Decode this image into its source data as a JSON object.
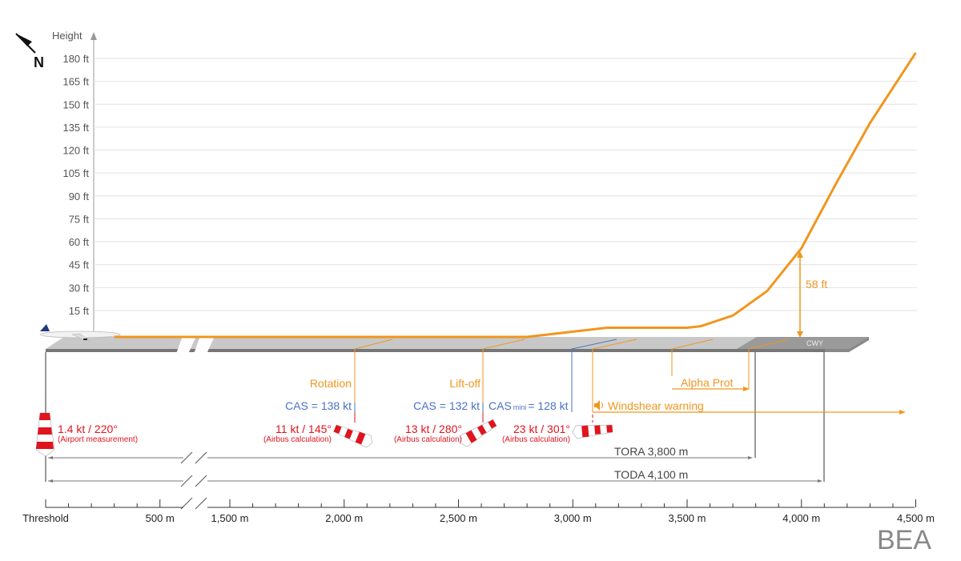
{
  "y_axis": {
    "label": "Height",
    "ticks": [
      "15 ft",
      "30 ft",
      "45 ft",
      "60 ft",
      "75 ft",
      "90 ft",
      "105 ft",
      "120 ft",
      "135 ft",
      "150 ft",
      "165 ft",
      "180 ft"
    ],
    "tick_values": [
      15,
      30,
      45,
      60,
      75,
      90,
      105,
      120,
      135,
      150,
      165,
      180
    ]
  },
  "x_axis": {
    "ticks": [
      {
        "label": "Threshold",
        "value": 0
      },
      {
        "label": "500 m",
        "value": 500
      },
      {
        "label": "1,500 m",
        "value": 1500
      },
      {
        "label": "2,000 m",
        "value": 2000
      },
      {
        "label": "2,500 m",
        "value": 2500
      },
      {
        "label": "3,000 m",
        "value": 3000
      },
      {
        "label": "3,500 m",
        "value": 3500
      },
      {
        "label": "4,000 m",
        "value": 4000
      },
      {
        "label": "4,500 m",
        "value": 4500
      }
    ],
    "axis_break": [
      600,
      1400
    ]
  },
  "north_label": "N",
  "runway": {
    "clearway_label": "CWY"
  },
  "profile": {
    "color": "#f0961e",
    "points": [
      [
        300,
        0
      ],
      [
        2800,
        0
      ],
      [
        3150,
        6
      ],
      [
        3500,
        6
      ],
      [
        3560,
        7
      ],
      [
        3700,
        14
      ],
      [
        3850,
        30
      ],
      [
        4000,
        58
      ],
      [
        4150,
        100
      ],
      [
        4300,
        140
      ],
      [
        4500,
        186
      ]
    ],
    "height_annotation": {
      "label": "58 ft",
      "distance": 4000,
      "value": 58
    }
  },
  "events": {
    "rotation": {
      "label": "Rotation",
      "cas": "CAS = 138 kt",
      "distance": 2050
    },
    "liftoff": {
      "label": "Lift-off",
      "cas": "CAS = 132 kt",
      "distance": 2610
    },
    "cas_mini": {
      "prefix": "CAS",
      "sub": "mini",
      "value": "= 128 kt",
      "distance": 3000
    },
    "windshear": {
      "label": "Windshear warning",
      "distance": 3090
    },
    "alpha_prot": {
      "label": "Alpha Prot",
      "start": 3440,
      "end": 3780
    }
  },
  "winds": [
    {
      "value": "1.4 kt / 220°",
      "source": "(Airport measurement)"
    },
    {
      "value": "11 kt / 145°",
      "source": "(Airbus calculation)"
    },
    {
      "value": "13 kt / 280°",
      "source": "(Airbus calculation)"
    },
    {
      "value": "23 kt / 301°",
      "source": "(Airbus calculation)"
    }
  ],
  "distances": {
    "tora": {
      "label": "TORA 3,800 m",
      "value": 3800
    },
    "toda": {
      "label": "TODA 4,100 m",
      "value": 4100
    }
  },
  "colors": {
    "orange": "#f0961e",
    "blue": "#4a72c4",
    "red": "#e0141e",
    "runway": "#c8c8c8"
  },
  "logo": "BEA"
}
